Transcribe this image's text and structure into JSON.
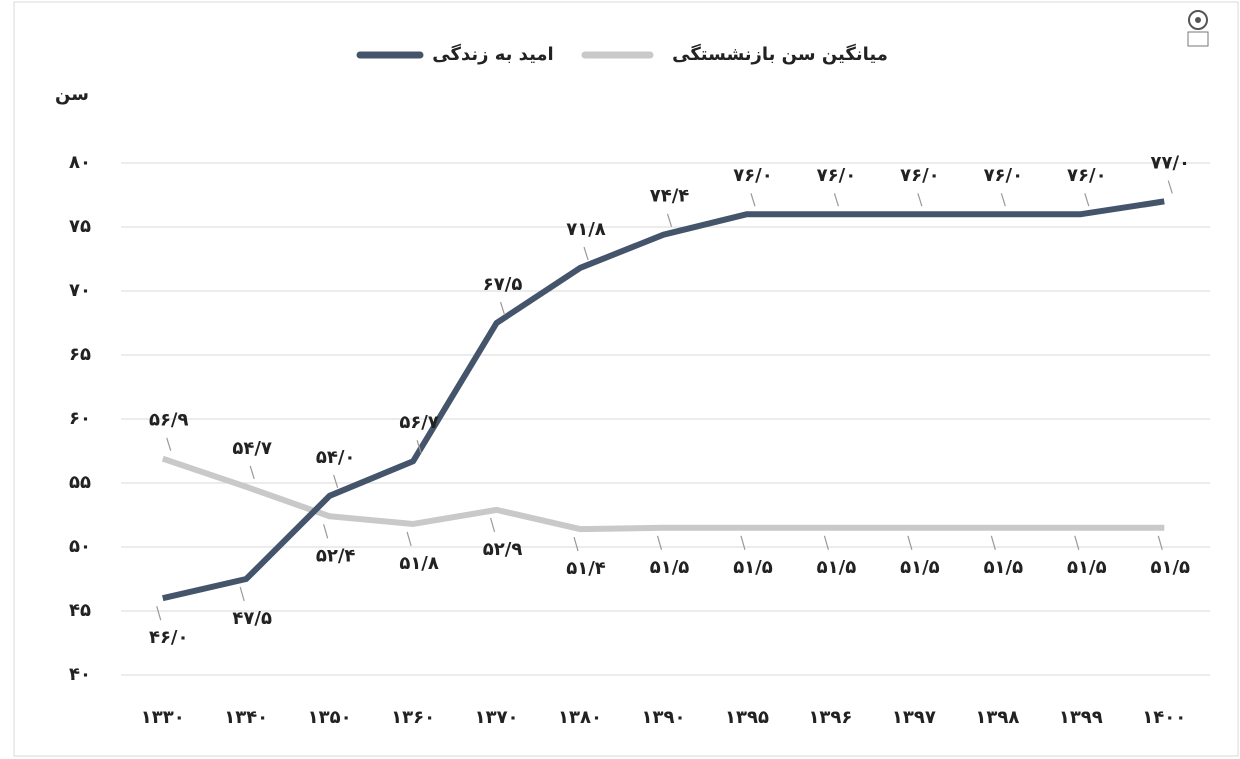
{
  "chart_data": {
    "type": "line",
    "y_axis_label": "سن",
    "categories": [
      "۱۳۳۰",
      "۱۳۴۰",
      "۱۳۵۰",
      "۱۳۶۰",
      "۱۳۷۰",
      "۱۳۸۰",
      "۱۳۹۰",
      "۱۳۹۵",
      "۱۳۹۶",
      "۱۳۹۷",
      "۱۳۹۸",
      "۱۳۹۹",
      "۱۴۰۰"
    ],
    "series": [
      {
        "name": "میانگین سن بازنشستگی",
        "color": "#c9c9c9",
        "label_color": "#7a2a3c",
        "values": [
          56.9,
          54.7,
          52.4,
          51.8,
          52.9,
          51.4,
          51.5,
          51.5,
          51.5,
          51.5,
          51.5,
          51.5,
          51.5
        ],
        "value_labels": [
          "۵۶/۹",
          "۵۴/۷",
          "۵۲/۴",
          "۵۱/۸",
          "۵۲/۹",
          "۵۱/۴",
          "۵۱/۵",
          "۵۱/۵",
          "۵۱/۵",
          "۵۱/۵",
          "۵۱/۵",
          "۵۱/۵",
          "۵۱/۵"
        ]
      },
      {
        "name": "امید به زندگی",
        "color": "#44546a",
        "label_color": "#44546a",
        "values": [
          46.0,
          47.5,
          54.0,
          56.7,
          67.5,
          71.8,
          74.4,
          76.0,
          76.0,
          76.0,
          76.0,
          76.0,
          77.0
        ],
        "value_labels": [
          "۴۶/۰",
          "۴۷/۵",
          "۵۴/۰",
          "۵۶/۷",
          "۶۷/۵",
          "۷۱/۸",
          "۷۴/۴",
          "۷۶/۰",
          "۷۶/۰",
          "۷۶/۰",
          "۷۶/۰",
          "۷۶/۰",
          "۷۷/۰"
        ]
      }
    ],
    "ylim": [
      40,
      80
    ],
    "yticks": [
      {
        "value": 40,
        "label": "۴۰"
      },
      {
        "value": 45,
        "label": "۴۵"
      },
      {
        "value": 50,
        "label": "۵۰"
      },
      {
        "value": 55,
        "label": "۵۵"
      },
      {
        "value": 60,
        "label": "۶۰"
      },
      {
        "value": 65,
        "label": "۶۵"
      },
      {
        "value": 70,
        "label": "۷۰"
      },
      {
        "value": 75,
        "label": "۷۵"
      },
      {
        "value": 80,
        "label": "۸۰"
      }
    ],
    "grid": true
  }
}
